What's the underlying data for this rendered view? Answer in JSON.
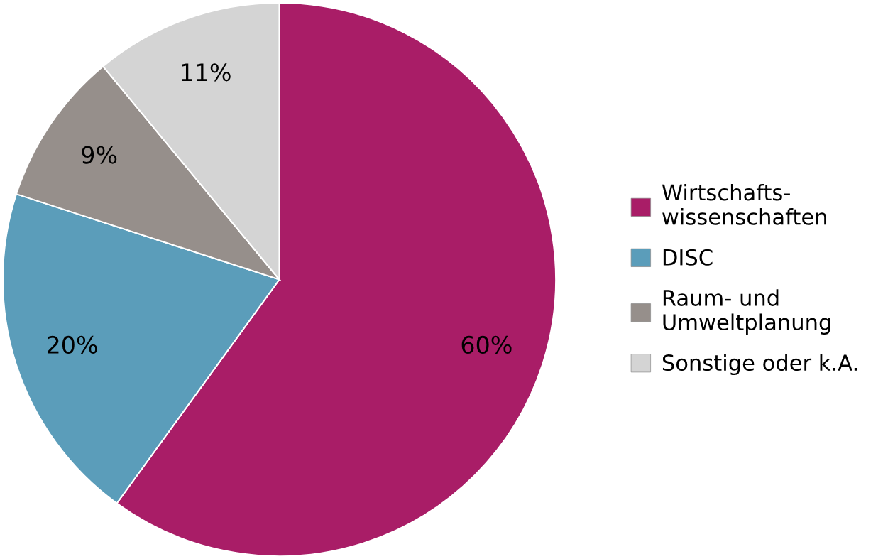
{
  "chart_data": {
    "type": "pie",
    "categories": [
      "Wirtschafts-\nwissenschaften",
      "DISC",
      "Raum- und\nUmweltplanung",
      "Sonstige oder k.A."
    ],
    "values": [
      60,
      20,
      9,
      11
    ],
    "colors": [
      "#a91d67",
      "#5b9dba",
      "#968f8b",
      "#d4d4d4"
    ],
    "value_labels": [
      "60%",
      "20%",
      "9%",
      "11%"
    ],
    "legend": "right"
  }
}
